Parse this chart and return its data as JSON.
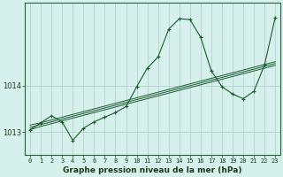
{
  "title": "Graphe pression niveau de la mer (hPa)",
  "background_color": "#d6f0eb",
  "grid_color": "#aacfc8",
  "line_color": "#1a5c30",
  "hours": [
    0,
    1,
    2,
    3,
    4,
    5,
    6,
    7,
    8,
    9,
    10,
    11,
    12,
    13,
    14,
    15,
    16,
    17,
    18,
    19,
    20,
    21,
    22,
    23
  ],
  "series1": [
    1013.05,
    1013.2,
    1013.35,
    1013.22,
    1012.82,
    1013.08,
    1013.22,
    1013.32,
    1013.42,
    1013.55,
    1013.98,
    1014.38,
    1014.62,
    1015.22,
    1015.45,
    1015.43,
    1015.05,
    1014.32,
    1013.98,
    1013.82,
    1013.72,
    1013.88,
    1014.45,
    1015.48
  ],
  "trend1": [
    1013.05,
    1013.12,
    1013.18,
    1013.24,
    1013.3,
    1013.36,
    1013.42,
    1013.48,
    1013.54,
    1013.6,
    1013.66,
    1013.72,
    1013.78,
    1013.84,
    1013.9,
    1013.96,
    1014.02,
    1014.08,
    1014.14,
    1014.2,
    1014.26,
    1014.32,
    1014.38,
    1014.44
  ],
  "trend2": [
    1013.1,
    1013.16,
    1013.22,
    1013.28,
    1013.34,
    1013.4,
    1013.46,
    1013.52,
    1013.58,
    1013.64,
    1013.7,
    1013.76,
    1013.82,
    1013.88,
    1013.94,
    1014.0,
    1014.06,
    1014.12,
    1014.18,
    1014.24,
    1014.3,
    1014.36,
    1014.42,
    1014.48
  ],
  "trend3": [
    1013.15,
    1013.2,
    1013.26,
    1013.32,
    1013.38,
    1013.44,
    1013.5,
    1013.56,
    1013.62,
    1013.68,
    1013.74,
    1013.8,
    1013.86,
    1013.92,
    1013.98,
    1014.04,
    1014.1,
    1014.16,
    1014.22,
    1014.28,
    1014.34,
    1014.4,
    1014.46,
    1014.52
  ],
  "ytick_positions": [
    1013,
    1014
  ],
  "ylim": [
    1012.5,
    1015.8
  ],
  "xlim": [
    -0.5,
    23.5
  ],
  "xtick_fontsize": 5.0,
  "ytick_fontsize": 6.0,
  "title_fontsize": 6.5
}
